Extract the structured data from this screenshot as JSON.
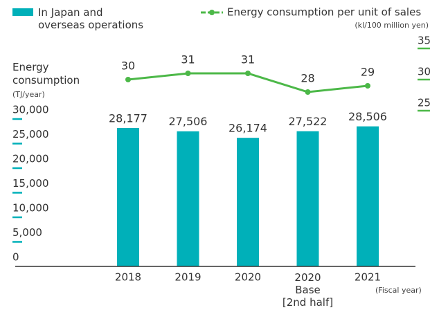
{
  "chart_data": {
    "type": "bar_line",
    "y_label": "Energy\nconsumption",
    "y_unit": "(TJ/year)",
    "y2_unit": "(kl/100 million yen)",
    "x_unit": "(Fiscal year)",
    "categories": [
      "2018",
      "2019",
      "2020",
      "2020\nBase\n[2nd half]",
      "2021"
    ],
    "series": [
      {
        "name": "In Japan and\noverseas operations",
        "type": "bar",
        "color": "#00b0b9",
        "values": [
          28177,
          27506,
          26174,
          27522,
          28506
        ],
        "value_labels": [
          "28,177",
          "27,506",
          "26,174",
          "27,522",
          "28,506"
        ]
      },
      {
        "name": "Energy consumption per unit of sales",
        "type": "line",
        "axis": "y2",
        "color": "#4cb848",
        "values": [
          30,
          31,
          31,
          28,
          29
        ]
      }
    ],
    "ylim": [
      0,
      30000
    ],
    "yticks": [
      0,
      {
        "value": 5000,
        "label": "5,000"
      },
      {
        "value": 10000,
        "label": "10,000"
      },
      {
        "value": 15000,
        "label": "15,000"
      },
      {
        "value": 20000,
        "label": "20,000"
      },
      {
        "value": 25000,
        "label": "25,000"
      },
      {
        "value": 30000,
        "label": "30,000"
      }
    ],
    "y2lim": [
      0,
      35
    ],
    "y2ticks": [
      25,
      30,
      35
    ]
  }
}
